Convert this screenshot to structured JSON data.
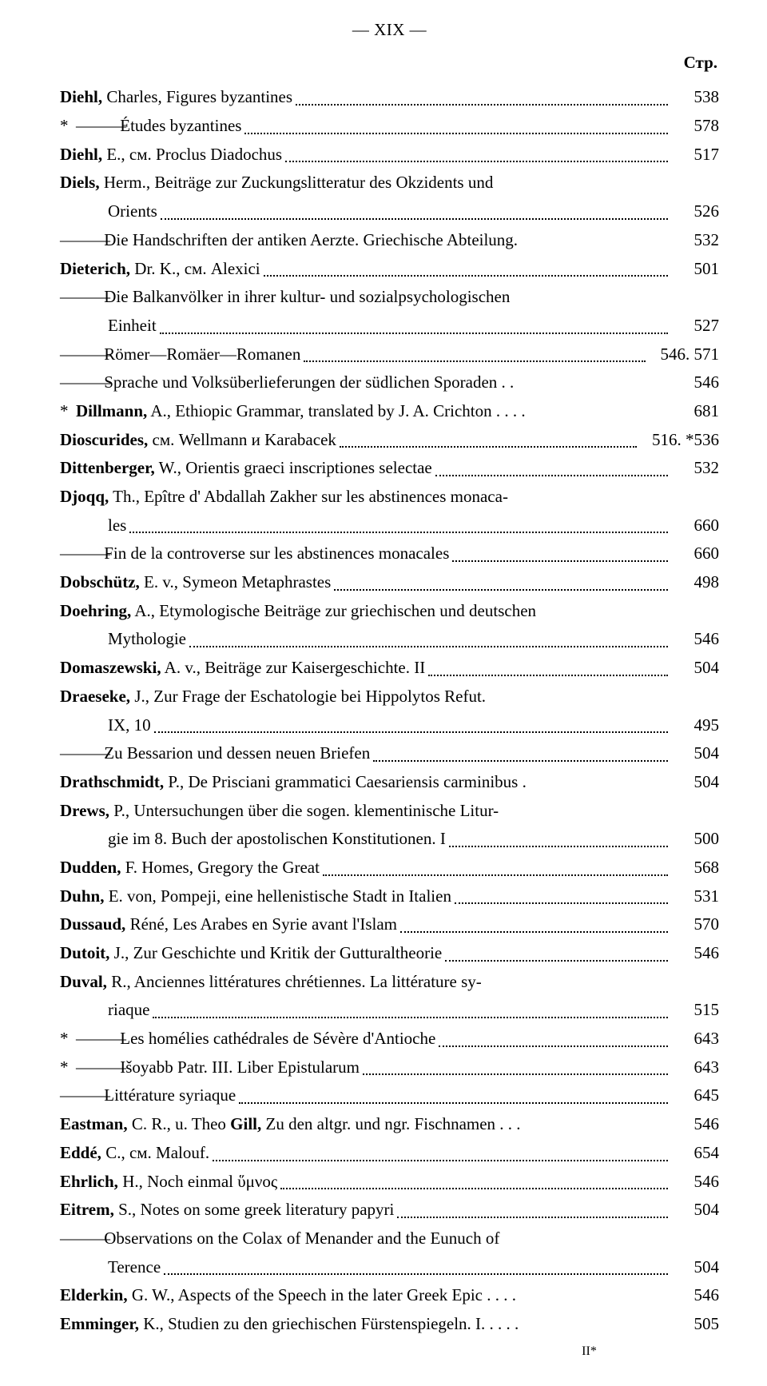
{
  "page_header": {
    "roman_numeral": "— XIX —",
    "column_label": "Стр."
  },
  "entries": [
    {
      "author": "Diehl,",
      "text": " Charles, Figures byzantines",
      "page": "538"
    },
    {
      "prefix_star": "*",
      "prefix_dash": "———",
      "text": " Études byzantines",
      "page": "578"
    },
    {
      "author": "Diehl,",
      "text": " E., см. Proclus Diadochus",
      "page": "517"
    },
    {
      "author": "Diels,",
      "text": " Herm., Beiträge zur Zuckungslitteratur des Okzidents und",
      "no_page": true
    },
    {
      "indent": true,
      "text": "Orients",
      "page": "526"
    },
    {
      "prefix_dash": "———",
      "text": " Die Handschriften der antiken Aerzte. Griechische Abteilung.",
      "page": "532",
      "no_dots": true
    },
    {
      "author": "Dieterich,",
      "text": " Dr. K., см. Alexici",
      "page": "501"
    },
    {
      "prefix_dash": "———",
      "text": " Die Balkanvölker in ihrer kultur- und sozialpsychologischen",
      "no_page": true
    },
    {
      "indent": true,
      "text": "Einheit",
      "page": "527"
    },
    {
      "prefix_dash": "———",
      "text": " Römer—Romäer—Romanen",
      "page": "546. 571"
    },
    {
      "prefix_dash": "———",
      "text": " Sprache und Volksüberlieferungen der südlichen Sporaden . .",
      "page": "546",
      "no_dots": true
    },
    {
      "prefix_star": "*",
      "author": "Dillmann,",
      "text": " A., Ethiopic Grammar, translated by J. A. Crichton . . . .",
      "page": "681",
      "no_dots": true
    },
    {
      "author": "Dioscurides,",
      "text": " см. Wellmann и Karabacek",
      "page": "516. *536"
    },
    {
      "author": "Dittenberger,",
      "text": " W., Orientis graeci inscriptiones selectae",
      "page": "532"
    },
    {
      "author": "Djoqq,",
      "text": " Th., Epître d' Abdallah Zakher sur les abstinences monaca-",
      "no_page": true
    },
    {
      "indent": true,
      "text": "les",
      "page": "660"
    },
    {
      "prefix_dash": "———",
      "text": " Fin de la controverse sur les abstinences monacales",
      "page": "660"
    },
    {
      "author": "Dobschütz,",
      "text": " E. v., Symeon Metaphrastes",
      "page": "498"
    },
    {
      "author": "Doehring,",
      "text": " A., Etymologische Beiträge zur griechischen und deutschen",
      "no_page": true
    },
    {
      "indent": true,
      "text": "Mythologie",
      "page": "546"
    },
    {
      "author": "Domaszewski,",
      "text": " A. v., Beiträge zur Kaisergeschichte. II",
      "page": "504"
    },
    {
      "author": "Draeseke,",
      "text": " J., Zur Frage der Eschatologie bei Hippolytos Refut.",
      "no_page": true
    },
    {
      "indent": true,
      "text": "IX, 10",
      "page": "495"
    },
    {
      "prefix_dash": "———",
      "text": " Zu Bessarion und dessen neuen Briefen",
      "page": "504"
    },
    {
      "author": "Drathschmidt,",
      "text": " P., De Prisciani grammatici Caesariensis carminibus .",
      "page": "504",
      "no_dots": true
    },
    {
      "author": "Drews,",
      "text": " P., Untersuchungen über die sogen. klementinische Litur-",
      "no_page": true
    },
    {
      "indent": true,
      "text": "gie im 8. Buch der apostolischen Konstitutionen. I",
      "page": "500"
    },
    {
      "author": "Dudden,",
      "text": " F. Homes, Gregory the Great",
      "page": "568"
    },
    {
      "author": "Duhn,",
      "text": " E. von, Pompeji, eine hellenistische Stadt in Italien",
      "page": "531"
    },
    {
      "author": "Dussaud,",
      "text": " Réné, Les Arabes en Syrie avant l'Islam",
      "page": "570"
    },
    {
      "author": "Dutoit,",
      "text": " J., Zur Geschichte und Kritik der Gutturaltheorie",
      "page": "546"
    },
    {
      "author": "Duval,",
      "text": " R., Anciennes littératures chrétiennes. La littérature sy-",
      "no_page": true
    },
    {
      "indent": true,
      "text": "riaque",
      "page": "515"
    },
    {
      "prefix_star": "*",
      "prefix_dash": "———",
      "text": " Les homélies cathédrales de Sévère d'Antioche",
      "page": "643"
    },
    {
      "prefix_star": "*",
      "prefix_dash": "———",
      "text": " Išoyabb Patr. III. Liber Epistularum",
      "page": "643"
    },
    {
      "prefix_dash": "———",
      "text": " Littérature syriaque",
      "page": "645"
    },
    {
      "author": "Eastman,",
      "text": " C. R., u. Theo ",
      "author2": "Gill,",
      "text2": " Zu den altgr. und ngr. Fischnamen . . .",
      "page": "546",
      "no_dots": true
    },
    {
      "author": "Eddé,",
      "text": " C., см. Malouf.",
      "page": "654"
    },
    {
      "author": "Ehrlich,",
      "text": " H., Noch einmal ὕμνος",
      "page": "546"
    },
    {
      "author": "Eitrem,",
      "text": " S., Notes on some greek literatury papyri",
      "page": "504"
    },
    {
      "prefix_dash": "———",
      "text": " Observations on the Colax of Menander and the Eunuch of",
      "no_page": true
    },
    {
      "indent": true,
      "text": "Terence",
      "page": "504"
    },
    {
      "author": "Elderkin,",
      "text": " G. W., Aspects of the Speech in the later Greek Epic . . . .",
      "page": "546",
      "no_dots": true
    },
    {
      "author": "Emminger,",
      "text": " K., Studien zu den griechischen Fürstenspiegeln. I. . . . .",
      "page": "505",
      "no_dots": true
    }
  ],
  "footer_mark": "II*"
}
